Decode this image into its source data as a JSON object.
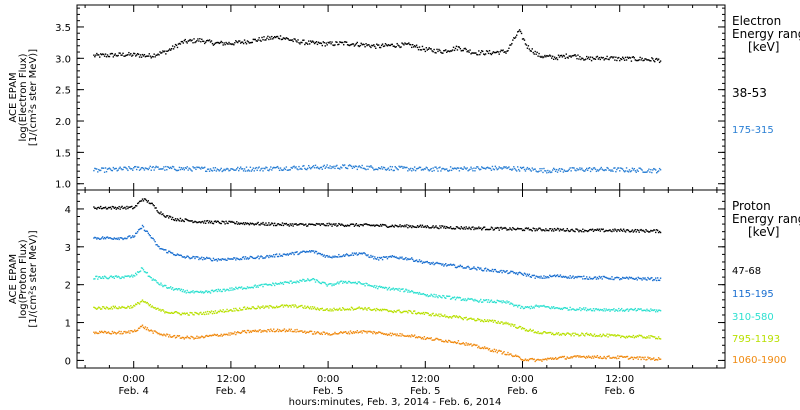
{
  "chart_data": {
    "type": "scatter",
    "xlabel": "hours:minutes, Feb. 3, 2014 - Feb. 6, 2014",
    "x_tick_labels": [
      {
        "time": "0:00",
        "date": "Feb. 4"
      },
      {
        "time": "12:00",
        "date": "Feb. 4"
      },
      {
        "time": "0:00",
        "date": "Feb. 5"
      },
      {
        "time": "12:00",
        "date": "Feb. 5"
      },
      {
        "time": "0:00",
        "date": "Feb. 6"
      },
      {
        "time": "12:00",
        "date": "Feb. 6"
      }
    ],
    "x_tick_hours": [
      24,
      36,
      48,
      60,
      72,
      84
    ],
    "xlim_hours": [
      17,
      97
    ],
    "panels": [
      {
        "name": "electron",
        "ylabel": [
          "ACE EPAM",
          "log(Electron Flux)",
          "[1/(cm²s ster MeV)]"
        ],
        "ylim": [
          0.9,
          3.85
        ],
        "yticks": [
          1.0,
          1.5,
          2.0,
          2.5,
          3.0,
          3.5
        ],
        "ytick_labels": [
          "1.0",
          "1.5",
          "2.0",
          "2.5",
          "3.0",
          "3.5"
        ],
        "legend_title": [
          "Electron",
          "Energy ranges",
          "[keV]"
        ],
        "series": [
          {
            "name": "38-53",
            "color": "#000000",
            "hours": [
              19,
              23,
              26,
              28,
              30,
              32,
              34,
              36,
              38,
              40,
              42,
              44,
              46,
              48,
              50,
              52,
              54,
              56,
              58,
              60,
              62,
              64,
              66,
              68,
              70,
              71.5,
              72.5,
              74,
              76,
              78,
              80,
              82,
              84,
              86,
              89
            ],
            "values": [
              3.05,
              3.07,
              3.05,
              3.12,
              3.27,
              3.3,
              3.25,
              3.25,
              3.28,
              3.32,
              3.35,
              3.28,
              3.25,
              3.24,
              3.25,
              3.23,
              3.2,
              3.22,
              3.22,
              3.15,
              3.12,
              3.18,
              3.1,
              3.1,
              3.12,
              3.45,
              3.2,
              3.05,
              3.02,
              3.06,
              3.0,
              3.02,
              3.0,
              3.0,
              2.98
            ]
          },
          {
            "name": "175-315",
            "color": "#2a7fd4",
            "hours": [
              19,
              25,
              30,
              35,
              40,
              45,
              50,
              55,
              60,
              65,
              70,
              75,
              80,
              85,
              89
            ],
            "values": [
              1.22,
              1.26,
              1.25,
              1.24,
              1.25,
              1.27,
              1.28,
              1.26,
              1.24,
              1.25,
              1.26,
              1.22,
              1.24,
              1.23,
              1.22
            ]
          }
        ]
      },
      {
        "name": "proton",
        "ylabel": [
          "ACE EPAM",
          "log(Proton Flux)",
          "[1/(cm²s ster MeV)]"
        ],
        "ylim": [
          -0.2,
          4.5
        ],
        "yticks": [
          0,
          1,
          2,
          3,
          4
        ],
        "ytick_labels": [
          "0",
          "1",
          "2",
          "3",
          "4"
        ],
        "legend_title": [
          "Proton",
          "Energy ranges",
          "[keV]"
        ],
        "series": [
          {
            "name": "47-68",
            "color": "#000000",
            "hours": [
              19,
              22,
              24,
              25,
              26,
              27,
              28,
              29,
              32,
              36,
              40,
              44,
              48,
              52,
              56,
              60,
              64,
              68,
              72,
              76,
              80,
              84,
              89
            ],
            "values": [
              4.05,
              4.05,
              4.05,
              4.28,
              4.18,
              3.95,
              3.82,
              3.75,
              3.68,
              3.65,
              3.62,
              3.6,
              3.6,
              3.59,
              3.57,
              3.55,
              3.52,
              3.5,
              3.48,
              3.47,
              3.45,
              3.45,
              3.43
            ]
          },
          {
            "name": "115-195",
            "color": "#1a6fd0",
            "hours": [
              19,
              23,
              24,
              25,
              26,
              27,
              28,
              30,
              32,
              34,
              36,
              38,
              40,
              42,
              44,
              46,
              48,
              50,
              52,
              54,
              56,
              58,
              60,
              62,
              64,
              66,
              68,
              70,
              72,
              74,
              76,
              78,
              80,
              82,
              84,
              86,
              89
            ],
            "values": [
              3.25,
              3.25,
              3.3,
              3.55,
              3.3,
              3.0,
              2.9,
              2.75,
              2.72,
              2.68,
              2.7,
              2.72,
              2.75,
              2.8,
              2.85,
              2.9,
              2.75,
              2.8,
              2.85,
              2.7,
              2.75,
              2.7,
              2.6,
              2.55,
              2.5,
              2.45,
              2.4,
              2.35,
              2.3,
              2.2,
              2.25,
              2.22,
              2.2,
              2.2,
              2.18,
              2.18,
              2.16
            ]
          },
          {
            "name": "310-580",
            "color": "#2ee0d0",
            "hours": [
              19,
              23,
              24,
              25,
              26,
              27,
              28,
              30,
              32,
              34,
              36,
              38,
              40,
              42,
              44,
              46,
              48,
              50,
              52,
              54,
              56,
              58,
              60,
              62,
              64,
              66,
              68,
              70,
              72,
              74,
              76,
              78,
              80,
              82,
              84,
              86,
              89
            ],
            "values": [
              2.2,
              2.22,
              2.25,
              2.45,
              2.2,
              2.05,
              1.95,
              1.85,
              1.8,
              1.85,
              1.9,
              1.95,
              2.0,
              2.05,
              2.1,
              2.15,
              2.0,
              2.1,
              2.05,
              1.95,
              1.9,
              1.85,
              1.75,
              1.7,
              1.65,
              1.6,
              1.58,
              1.55,
              1.4,
              1.45,
              1.4,
              1.38,
              1.37,
              1.36,
              1.35,
              1.35,
              1.33
            ]
          },
          {
            "name": "795-1193",
            "color": "#b8e000",
            "hours": [
              19,
              23,
              24,
              25,
              26,
              27,
              28,
              30,
              32,
              34,
              36,
              38,
              40,
              42,
              44,
              46,
              48,
              50,
              52,
              54,
              56,
              58,
              60,
              62,
              64,
              66,
              68,
              70,
              72,
              74,
              76,
              78,
              80,
              82,
              84,
              86,
              89
            ],
            "values": [
              1.4,
              1.42,
              1.45,
              1.6,
              1.45,
              1.35,
              1.3,
              1.25,
              1.25,
              1.3,
              1.35,
              1.4,
              1.42,
              1.45,
              1.45,
              1.4,
              1.35,
              1.38,
              1.4,
              1.35,
              1.32,
              1.3,
              1.25,
              1.2,
              1.15,
              1.1,
              1.05,
              1.0,
              0.85,
              0.75,
              0.72,
              0.7,
              0.7,
              0.68,
              0.65,
              0.65,
              0.62
            ]
          },
          {
            "name": "1060-1900",
            "color": "#f08a10",
            "hours": [
              19,
              23,
              24,
              25,
              26,
              27,
              28,
              30,
              32,
              34,
              36,
              38,
              40,
              42,
              44,
              46,
              48,
              50,
              52,
              54,
              56,
              58,
              60,
              62,
              64,
              66,
              68,
              70,
              72,
              74,
              76,
              78,
              80,
              82,
              84,
              86,
              89
            ],
            "values": [
              0.75,
              0.75,
              0.8,
              0.92,
              0.8,
              0.72,
              0.68,
              0.62,
              0.62,
              0.68,
              0.72,
              0.78,
              0.8,
              0.82,
              0.8,
              0.75,
              0.72,
              0.75,
              0.78,
              0.75,
              0.7,
              0.68,
              0.6,
              0.55,
              0.5,
              0.4,
              0.3,
              0.2,
              0.05,
              0.02,
              0.08,
              0.1,
              0.12,
              0.1,
              0.1,
              0.08,
              0.05
            ]
          }
        ]
      }
    ]
  }
}
